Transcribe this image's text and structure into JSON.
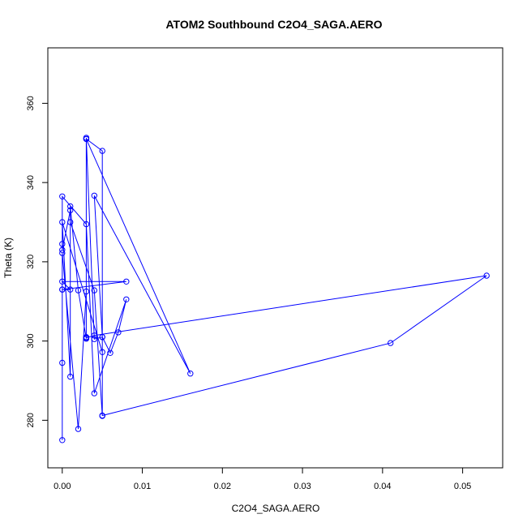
{
  "chart_data": {
    "type": "line",
    "title": "ATOM2 Southbound C2O4_SAGA.AERO",
    "xlabel": "C2O4_SAGA.AERO",
    "ylabel": "Theta (K)",
    "xlim": [
      -0.0018,
      0.055
    ],
    "ylim": [
      268.0,
      374.0
    ],
    "xticks": [
      0.0,
      0.01,
      0.02,
      0.03,
      0.04,
      0.05
    ],
    "xtick_labels": [
      "0.00",
      "0.01",
      "0.02",
      "0.03",
      "0.04",
      "0.05"
    ],
    "yticks": [
      280,
      300,
      320,
      340,
      360
    ],
    "ytick_labels": [
      "280",
      "300",
      "320",
      "340",
      "360"
    ],
    "grid": false,
    "series": [
      {
        "color": "#0000ff",
        "markers": "open-circle",
        "x": [
          0.0,
          0.0,
          0.0,
          0.001,
          0.0,
          0.008,
          0.0,
          0.0,
          0.002,
          0.003,
          0.003,
          0.005,
          0.005,
          0.004,
          0.001,
          0.001,
          0.002,
          0.003,
          0.003,
          0.003,
          0.004,
          0.005,
          0.006,
          0.007,
          0.008,
          0.004,
          0.003,
          0.0,
          0.0,
          0.0,
          0.001,
          0.001,
          0.0,
          0.005,
          0.005,
          0.004,
          0.016,
          0.003,
          0.003,
          0.004,
          0.053,
          0.041,
          0.005
        ],
        "y": [
          275.0,
          294.5,
          313.0,
          313.0,
          315.0,
          315.0,
          313.0,
          322.2,
          277.8,
          312.5,
          351.0,
          348.0,
          281.1,
          312.8,
          330.0,
          334.0,
          312.8,
          300.6,
          301.0,
          351.3,
          300.5,
          301.0,
          297.0,
          302.2,
          310.5,
          286.8,
          329.5,
          336.5,
          324.5,
          323.0,
          333.0,
          291.0,
          330.0,
          297.2,
          301.0,
          336.7,
          291.8,
          351.0,
          300.8,
          301.4,
          316.5,
          299.5,
          281.2
        ]
      }
    ]
  }
}
